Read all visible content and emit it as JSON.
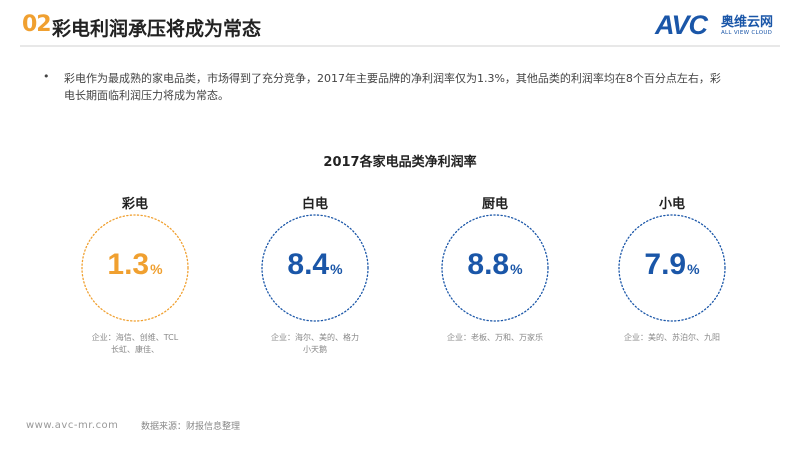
{
  "header": {
    "slide_number": "02",
    "title": "彩电利润承压将成为常态",
    "logo": {
      "mark": "AVC",
      "name_cn": "奥维云网",
      "name_en": "ALL VIEW CLOUD"
    }
  },
  "intro": {
    "bullet": "•",
    "text": "彩电作为最成熟的家电品类，市场得到了充分竞争，2017年主要品牌的净利润率仅为1.3%，其他品类的利润率均在8个百分点左右，彩电长期面临利润压力将成为常态。"
  },
  "chart_data": {
    "type": "table",
    "title": "2017各家电品类净利润率",
    "unit": "%",
    "categories": [
      "彩电",
      "白电",
      "厨电",
      "小电"
    ],
    "values": [
      1.3,
      8.4,
      8.8,
      7.9
    ],
    "value_labels": [
      "1.3",
      "8.4",
      "8.8",
      "7.9"
    ],
    "companies": [
      [
        "企业：海信、创维、TCL",
        "长虹、康佳、"
      ],
      [
        "企业：海尔、美的、格力",
        "小天鹅"
      ],
      [
        "企业：老板、万和、万家乐"
      ],
      [
        "企业：美的、苏泊尔、九阳"
      ]
    ],
    "colors": [
      "#f0a030",
      "#1a56a8",
      "#1a56a8",
      "#1a56a8"
    ]
  },
  "footer": {
    "url": "www.avc-mr.com",
    "source": "数据来源：财报信息整理"
  }
}
